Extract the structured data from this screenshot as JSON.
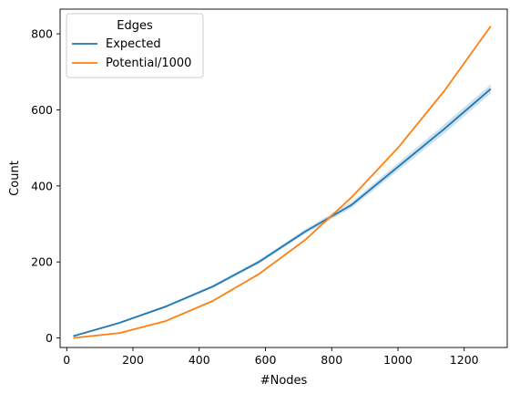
{
  "chart_data": {
    "type": "line",
    "xlabel": "#Nodes",
    "ylabel": "Count",
    "xlim": [
      -20,
      1330
    ],
    "ylim": [
      -25,
      865
    ],
    "xticks": [
      0,
      200,
      400,
      600,
      800,
      1000,
      1200
    ],
    "yticks": [
      0,
      200,
      400,
      600,
      800
    ],
    "legend": {
      "title": "Edges",
      "position": "top-left"
    },
    "x": [
      20,
      160,
      300,
      440,
      580,
      720,
      860,
      1000,
      1140,
      1280
    ],
    "series": [
      {
        "name": "Expected",
        "color": "#1f77b4",
        "values": [
          5,
          40,
          83,
          135,
          200,
          280,
          350,
          450,
          550,
          655
        ],
        "band_lower": [
          4,
          38,
          80,
          131,
          195,
          274,
          342,
          440,
          538,
          643
        ],
        "band_upper": [
          6,
          42,
          86,
          139,
          205,
          286,
          358,
          460,
          562,
          667
        ]
      },
      {
        "name": "Potential/1000",
        "color": "#ff7f0e",
        "values": [
          0.2,
          13,
          45,
          97,
          168,
          258,
          370,
          500,
          650,
          820
        ]
      }
    ]
  }
}
